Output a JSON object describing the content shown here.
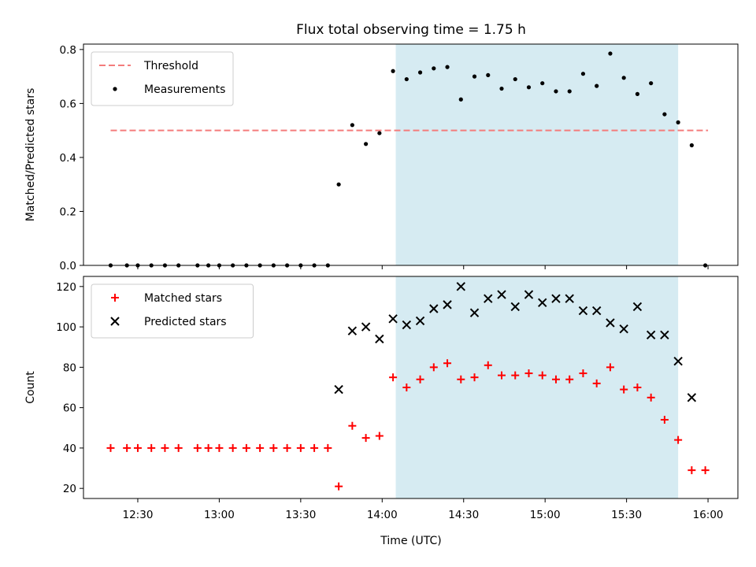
{
  "chart_data": {
    "title": "Flux total observing time = 1.75 h",
    "type": "scatter",
    "x_unit": "time of day (UTC)",
    "x_range": [
      "12:10",
      "16:11"
    ],
    "observing_window": {
      "start": "14:05",
      "end": "15:49"
    },
    "x_ticks": [
      "12:30",
      "13:00",
      "13:30",
      "14:00",
      "14:30",
      "15:00",
      "15:30",
      "16:00"
    ],
    "xlabel": "Time (UTC)",
    "panels": [
      {
        "ylabel": "Matched/Predicted stars",
        "ylim": [
          0,
          0.82
        ],
        "y_ticks": [
          "0.0",
          "0.2",
          "0.4",
          "0.6",
          "0.8"
        ],
        "legend_position": "upper-left",
        "threshold": {
          "name": "Threshold",
          "value": 0.5,
          "x_range": [
            "12:20",
            "16:00"
          ],
          "color": "#f47c7c",
          "style": "dashed"
        },
        "series": [
          {
            "name": "Measurements",
            "marker": "dot",
            "color": "#000000",
            "points": [
              [
                "12:20",
                0
              ],
              [
                "12:26",
                0
              ],
              [
                "12:30",
                0
              ],
              [
                "12:35",
                0
              ],
              [
                "12:40",
                0
              ],
              [
                "12:45",
                0
              ],
              [
                "12:52",
                0
              ],
              [
                "12:56",
                0
              ],
              [
                "13:00",
                0
              ],
              [
                "13:05",
                0
              ],
              [
                "13:10",
                0
              ],
              [
                "13:15",
                0
              ],
              [
                "13:20",
                0
              ],
              [
                "13:25",
                0
              ],
              [
                "13:30",
                0
              ],
              [
                "13:35",
                0
              ],
              [
                "13:40",
                0
              ],
              [
                "13:44",
                0.3
              ],
              [
                "13:49",
                0.52
              ],
              [
                "13:54",
                0.45
              ],
              [
                "13:59",
                0.49
              ],
              [
                "14:04",
                0.72
              ],
              [
                "14:09",
                0.69
              ],
              [
                "14:14",
                0.715
              ],
              [
                "14:19",
                0.73
              ],
              [
                "14:24",
                0.735
              ],
              [
                "14:29",
                0.615
              ],
              [
                "14:34",
                0.7
              ],
              [
                "14:39",
                0.705
              ],
              [
                "14:44",
                0.655
              ],
              [
                "14:49",
                0.69
              ],
              [
                "14:54",
                0.66
              ],
              [
                "14:59",
                0.675
              ],
              [
                "15:04",
                0.645
              ],
              [
                "15:09",
                0.645
              ],
              [
                "15:14",
                0.71
              ],
              [
                "15:19",
                0.665
              ],
              [
                "15:24",
                0.785
              ],
              [
                "15:29",
                0.695
              ],
              [
                "15:34",
                0.635
              ],
              [
                "15:39",
                0.675
              ],
              [
                "15:44",
                0.56
              ],
              [
                "15:49",
                0.53
              ],
              [
                "15:54",
                0.445
              ],
              [
                "15:59",
                0
              ]
            ]
          }
        ]
      },
      {
        "ylabel": "Count",
        "ylim": [
          15,
          125
        ],
        "y_ticks": [
          "20",
          "40",
          "60",
          "80",
          "100",
          "120"
        ],
        "legend_position": "upper-left",
        "series": [
          {
            "name": "Matched stars",
            "marker": "plus",
            "color": "#ff0000",
            "points": [
              [
                "12:20",
                40
              ],
              [
                "12:26",
                40
              ],
              [
                "12:30",
                40
              ],
              [
                "12:35",
                40
              ],
              [
                "12:40",
                40
              ],
              [
                "12:45",
                40
              ],
              [
                "12:52",
                40
              ],
              [
                "12:56",
                40
              ],
              [
                "13:00",
                40
              ],
              [
                "13:05",
                40
              ],
              [
                "13:10",
                40
              ],
              [
                "13:15",
                40
              ],
              [
                "13:20",
                40
              ],
              [
                "13:25",
                40
              ],
              [
                "13:30",
                40
              ],
              [
                "13:35",
                40
              ],
              [
                "13:40",
                40
              ],
              [
                "13:44",
                21
              ],
              [
                "13:49",
                51
              ],
              [
                "13:54",
                45
              ],
              [
                "13:59",
                46
              ],
              [
                "14:04",
                75
              ],
              [
                "14:09",
                70
              ],
              [
                "14:14",
                74
              ],
              [
                "14:19",
                80
              ],
              [
                "14:24",
                82
              ],
              [
                "14:29",
                74
              ],
              [
                "14:34",
                75
              ],
              [
                "14:39",
                81
              ],
              [
                "14:44",
                76
              ],
              [
                "14:49",
                76
              ],
              [
                "14:54",
                77
              ],
              [
                "14:59",
                76
              ],
              [
                "15:04",
                74
              ],
              [
                "15:09",
                74
              ],
              [
                "15:14",
                77
              ],
              [
                "15:19",
                72
              ],
              [
                "15:24",
                80
              ],
              [
                "15:29",
                69
              ],
              [
                "15:34",
                70
              ],
              [
                "15:39",
                65
              ],
              [
                "15:44",
                54
              ],
              [
                "15:49",
                44
              ],
              [
                "15:54",
                29
              ],
              [
                "15:59",
                29
              ]
            ]
          },
          {
            "name": "Predicted stars",
            "marker": "x",
            "color": "#000000",
            "points": [
              [
                "13:44",
                69
              ],
              [
                "13:49",
                98
              ],
              [
                "13:54",
                100
              ],
              [
                "13:59",
                94
              ],
              [
                "14:04",
                104
              ],
              [
                "14:09",
                101
              ],
              [
                "14:14",
                103
              ],
              [
                "14:19",
                109
              ],
              [
                "14:24",
                111
              ],
              [
                "14:29",
                120
              ],
              [
                "14:34",
                107
              ],
              [
                "14:39",
                114
              ],
              [
                "14:44",
                116
              ],
              [
                "14:49",
                110
              ],
              [
                "14:54",
                116
              ],
              [
                "14:59",
                112
              ],
              [
                "15:04",
                114
              ],
              [
                "15:09",
                114
              ],
              [
                "15:14",
                108
              ],
              [
                "15:19",
                108
              ],
              [
                "15:24",
                102
              ],
              [
                "15:29",
                99
              ],
              [
                "15:34",
                110
              ],
              [
                "15:39",
                96
              ],
              [
                "15:44",
                96
              ],
              [
                "15:49",
                83
              ],
              [
                "15:54",
                65
              ]
            ]
          }
        ]
      }
    ],
    "colors": {
      "window_fill": "#add8e6",
      "threshold": "#f47c7c",
      "matched": "#ff0000",
      "predicted": "#000000"
    }
  }
}
